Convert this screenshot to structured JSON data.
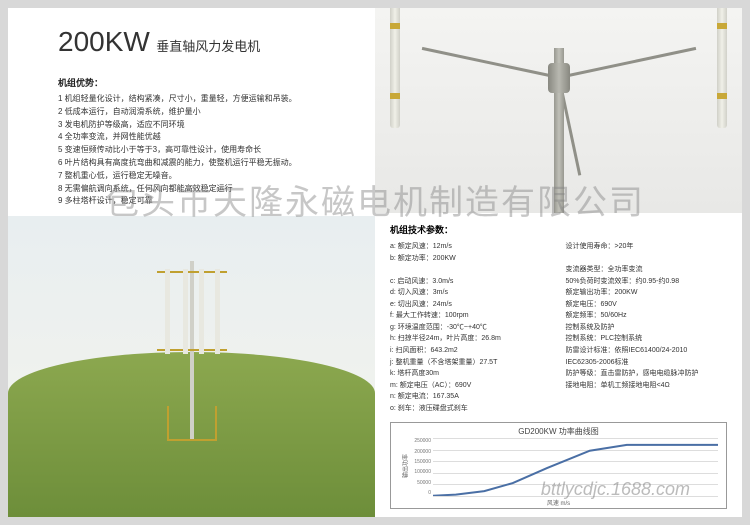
{
  "title": {
    "main": "200KW",
    "sub": "垂直轴风力发电机"
  },
  "advantages": {
    "heading": "机组优势：",
    "items": [
      "1 机组轻量化设计，结构紧凑，尺寸小，重量轻，方便运输和吊装。",
      "2 低成本运行，自动润滑系统，维护量小",
      "3 发电机防护等级高，适应不同环境",
      "4 全功率变流，并网性能优越",
      "5 变速恒频传动比小于等于3，高可靠性设计，使用寿命长",
      "6 叶片结构具有高度抗弯曲和减震的能力，使整机运行平稳无振动。",
      "7 整机重心低，运行稳定无噪音。",
      "8 无需偏航调向系统，任何风向都能高效稳定运行",
      "9 多柱塔杆设计，稳定可靠"
    ]
  },
  "specs": {
    "heading": "机组技术参数：",
    "left": [
      "a:  额定风速：12m/s",
      "b:  额定功率：200KW",
      "",
      "c:  启动风速：3.0m/s",
      "d:  切入风速：3m/s",
      "e:  切出风速：24m/s",
      "f:  最大工作转速：100rpm",
      "g:  环境温度范围：-30℃~+40℃",
      "h:  扫掠半径24m，叶片高度：26.8m",
      "i:  扫风面积：643.2m2",
      "j:  整机重量（不含塔架重量）27.5T",
      "k:  塔杆高度30m",
      "m:  额定电压（AC）：690V",
      "n:  额定电流：167.35A",
      "o:  刹车：液压碟盘式刹车"
    ],
    "right": [
      "设计使用寿命：>20年",
      "",
      "变流器类型：全功率变流",
      "50%负荷时变流效率：约0.95-约0.98",
      "额定输出功率：200KW",
      "额定电压：690V",
      "额定频率：50/60Hz",
      "控制系统及防护",
      "    控制系统：PLC控制系统",
      "    防雷设计标准：依照IEC61400/24-2010",
      "                  IEC62305-2006标准",
      "    防护等级：直击雷防护，感电电缆脉冲防护",
      "    接地电阻：单机工频接地电阻<4Ω"
    ]
  },
  "chart": {
    "title": "GD200KW 功率曲线图",
    "ylabel": "输出功率",
    "xlabel": "风速 m/s",
    "yticks": [
      "250000",
      "200000",
      "150000",
      "100000",
      "50000",
      "0"
    ],
    "line_color": "#4a6fa5",
    "points": [
      [
        0,
        0
      ],
      [
        8,
        2
      ],
      [
        18,
        8
      ],
      [
        28,
        22
      ],
      [
        40,
        48
      ],
      [
        55,
        78
      ],
      [
        68,
        88
      ],
      [
        80,
        88
      ],
      [
        100,
        88
      ]
    ]
  },
  "watermark": {
    "main": "包头市天隆永磁电机制造有限公司",
    "url": "bttlycdjc.1688.com"
  },
  "colors": {
    "accent": "#c8a838",
    "text": "#333333",
    "bg": "#ffffff"
  }
}
